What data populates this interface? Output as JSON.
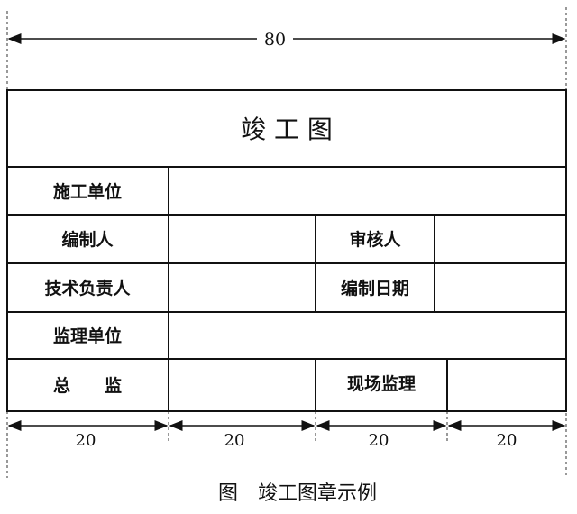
{
  "dimensions": {
    "total": "80",
    "columns": [
      "20",
      "20",
      "20",
      "20"
    ]
  },
  "title": "竣 工 图",
  "rows": {
    "construction_unit": "施工单位",
    "compiler": "编制人",
    "reviewer": "审核人",
    "technical_lead": "技术负责人",
    "compile_date": "编制日期",
    "supervision_unit": "监理单位",
    "chief_supervisor": "总　　监",
    "site_supervisor": "现场监理"
  },
  "caption": "图　竣工图章示例"
}
